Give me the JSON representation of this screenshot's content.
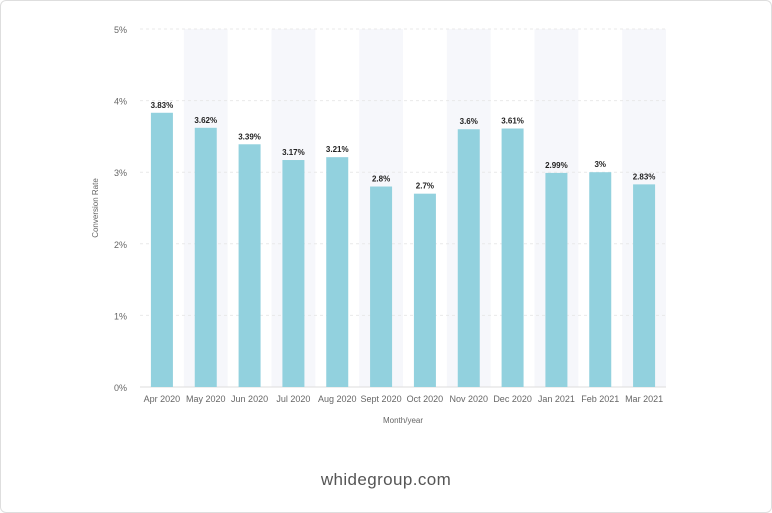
{
  "footer": {
    "text": "whidegroup.com"
  },
  "colors": {
    "bar": "#92d1de",
    "band": "#f6f7fb",
    "grid": "#e9e9e9",
    "axis_text": "#666666",
    "label_text": "#222222"
  },
  "chart_data": {
    "type": "bar",
    "categories": [
      "Apr 2020",
      "May 2020",
      "Jun 2020",
      "Jul 2020",
      "Aug 2020",
      "Sept 2020",
      "Oct 2020",
      "Nov 2020",
      "Dec 2020",
      "Jan 2021",
      "Feb 2021",
      "Mar 2021"
    ],
    "values": [
      3.83,
      3.62,
      3.39,
      3.17,
      3.21,
      2.8,
      2.7,
      3.6,
      3.61,
      2.99,
      3.0,
      2.83
    ],
    "value_labels": [
      "3.83%",
      "3.62%",
      "3.39%",
      "3.17%",
      "3.21%",
      "2.8%",
      "2.7%",
      "3.6%",
      "3.61%",
      "2.99%",
      "3%",
      "2.83%"
    ],
    "title": "",
    "xlabel": "Month/year",
    "ylabel": "Conversion Rate",
    "ylim": [
      0,
      5
    ],
    "yticks": [
      0,
      1,
      2,
      3,
      4,
      5
    ],
    "ytick_labels": [
      "0%",
      "1%",
      "2%",
      "3%",
      "4%",
      "5%"
    ],
    "grid": true,
    "alternating_bands": true
  }
}
